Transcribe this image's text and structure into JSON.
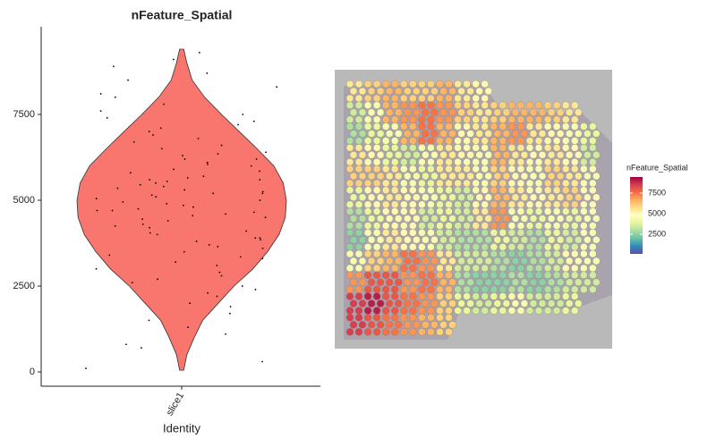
{
  "chart_data": [
    {
      "type": "violin",
      "title": "nFeature_Spatial",
      "x_label": "Identity",
      "categories": [
        "slice1"
      ],
      "ylim": [
        -417,
        10052
      ],
      "yticks": [
        0,
        2500,
        5000,
        7500
      ],
      "color": "#f8766d",
      "density": {
        "y": [
          50,
          500,
          1000,
          1500,
          2000,
          2500,
          3000,
          3500,
          4000,
          4500,
          5000,
          5500,
          6000,
          6500,
          7000,
          7500,
          8000,
          8500,
          9000,
          9400
        ],
        "width": [
          0.02,
          0.05,
          0.12,
          0.2,
          0.35,
          0.5,
          0.68,
          0.82,
          0.93,
          0.99,
          1.0,
          0.97,
          0.88,
          0.72,
          0.55,
          0.38,
          0.22,
          0.1,
          0.05,
          0.02
        ]
      },
      "points": [
        100,
        300,
        700,
        800,
        1100,
        1300,
        1500,
        1700,
        1900,
        2000,
        2200,
        2300,
        2500,
        2600,
        2700,
        2800,
        2900,
        3000,
        3100,
        3200,
        3300,
        3350,
        3400,
        3500,
        3600,
        3650,
        3700,
        3800,
        3850,
        3900,
        4000,
        4050,
        4100,
        4200,
        4250,
        4300,
        4400,
        4450,
        4500,
        4550,
        4600,
        4650,
        4700,
        4750,
        4800,
        4850,
        4900,
        4950,
        5000,
        5050,
        5100,
        5150,
        5200,
        5250,
        5300,
        5350,
        5400,
        5450,
        5500,
        5550,
        5600,
        5650,
        5700,
        5800,
        5850,
        5900,
        6000,
        6050,
        6100,
        6200,
        6300,
        6350,
        6400,
        6500,
        6600,
        6700,
        6800,
        6900,
        7000,
        7100,
        7200,
        7300,
        7400,
        7500,
        7600,
        7800,
        8000,
        8100,
        8300,
        8500,
        8700,
        8900,
        9100,
        9300,
        4700,
        5200,
        3900,
        6200,
        2400,
        5600
      ]
    },
    {
      "type": "spatial",
      "legend_title": "nFeature_Spatial",
      "clim": [
        110,
        9450
      ],
      "ticks": [
        2500,
        5000,
        7500
      ],
      "colors": [
        "#5e4fa2",
        "#3288bd",
        "#66c2a5",
        "#abdda4",
        "#e6f598",
        "#ffffbf",
        "#fee08b",
        "#fdae61",
        "#f46d43",
        "#d53e4f",
        "#9e0142"
      ],
      "spots": [
        [
          5500,
          6000,
          6500,
          6000,
          6000,
          6500,
          5500,
          5000,
          null,
          null,
          null,
          null,
          null,
          null
        ],
        [
          3500,
          4500,
          6500,
          7000,
          7500,
          7000,
          6000,
          5500,
          6000,
          6500,
          6500,
          6000,
          5500,
          null
        ],
        [
          3000,
          4000,
          4500,
          6500,
          7500,
          6500,
          5000,
          5500,
          6500,
          7000,
          5500,
          5000,
          4500,
          4000
        ],
        [
          5500,
          5000,
          4000,
          3500,
          4500,
          5500,
          5000,
          4500,
          6500,
          5500,
          5000,
          5500,
          5000,
          3500
        ],
        [
          6000,
          6000,
          5500,
          4500,
          4000,
          5500,
          5500,
          4500,
          6000,
          5000,
          4500,
          6000,
          5500,
          4500
        ],
        [
          4000,
          5000,
          5500,
          5000,
          4500,
          4000,
          3500,
          5000,
          6500,
          5500,
          5000,
          5500,
          6000,
          5000
        ],
        [
          3000,
          4000,
          5000,
          5000,
          3500,
          4000,
          3500,
          5500,
          7000,
          4500,
          4000,
          4500,
          4000,
          4500
        ],
        [
          2500,
          4500,
          5500,
          5000,
          4500,
          3500,
          3000,
          3000,
          4000,
          3500,
          3000,
          4000,
          3500,
          4500
        ],
        [
          4500,
          6000,
          6500,
          7500,
          7000,
          5500,
          3500,
          3500,
          3000,
          2500,
          3000,
          3500,
          5000,
          4500
        ],
        [
          7000,
          8000,
          8000,
          7000,
          7500,
          6500,
          3000,
          2500,
          2500,
          3000,
          2500,
          3000,
          3500,
          3500
        ],
        [
          8500,
          9000,
          8000,
          7500,
          7000,
          6000,
          4000,
          3500,
          4000,
          4500,
          3500,
          3500,
          4000,
          null
        ],
        [
          8500,
          8000,
          7500,
          7000,
          6500,
          6000,
          null,
          null,
          null,
          null,
          null,
          null,
          null,
          null
        ]
      ]
    }
  ]
}
